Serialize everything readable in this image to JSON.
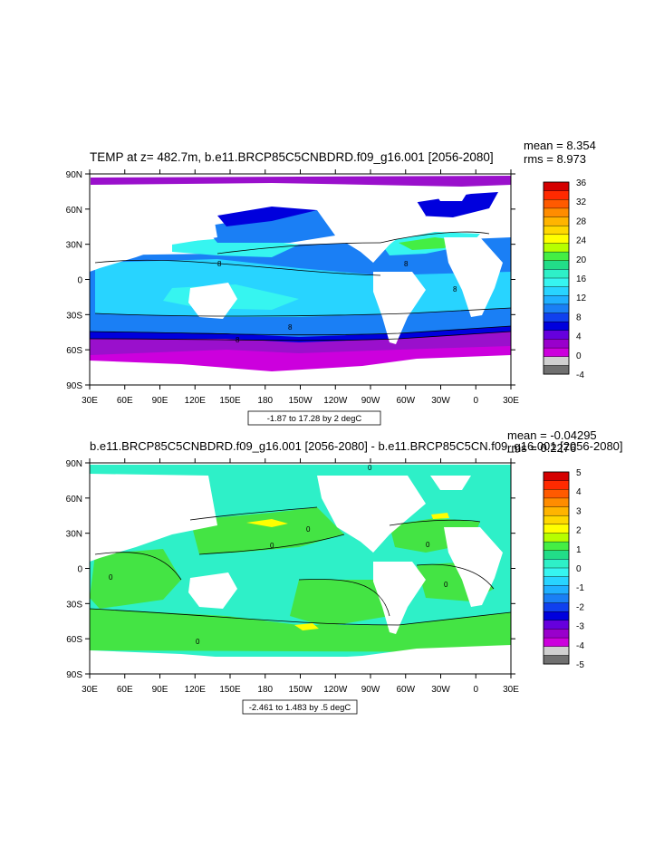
{
  "panel1": {
    "title": "TEMP at z= 482.7m, b.e11.BRCP85C5CNBDRD.f09_g16.001 [2056-2080]",
    "mean": "mean = 8.354",
    "rms": "rms = 8.973",
    "range_label": "-1.87 to 17.28 by 2 degC",
    "contour_labels": [
      "8",
      "8",
      "8",
      "8",
      "8"
    ],
    "colorbar": {
      "labels": [
        "36",
        "32",
        "28",
        "24",
        "20",
        "16",
        "12",
        "8",
        "4",
        "0",
        "-4"
      ],
      "colors": [
        "#d40000",
        "#ff2a00",
        "#ff5a00",
        "#ff8c00",
        "#ffb400",
        "#ffd800",
        "#ffff00",
        "#b6ff00",
        "#44ee44",
        "#22dd88",
        "#2ef0c8",
        "#36f5f0",
        "#28d4ff",
        "#20b0ff",
        "#1a7ff5",
        "#1040ee",
        "#0000dd",
        "#6600dd",
        "#9900cc",
        "#cc00dd",
        "#d0d0d0",
        "#707070"
      ]
    }
  },
  "panel2": {
    "title": "b.e11.BRCP85C5CNBDRD.f09_g16.001 [2056-2080] - b.e11.BRCP85C5CN.f09_g16.001 [2056-2080]",
    "mean": "mean = -0.04295",
    "rms": "rms = 0.2276",
    "range_label": "-2.461 to 1.483 by .5 degC",
    "contour_labels": [
      "0",
      "0",
      "0",
      "0",
      "0",
      "0",
      "0"
    ],
    "colorbar": {
      "labels": [
        "5",
        "4",
        "3",
        "2",
        "1",
        "0",
        "-1",
        "-2",
        "-3",
        "-4",
        "-5"
      ],
      "colors": [
        "#d40000",
        "#ff2a00",
        "#ff5a00",
        "#ff8c00",
        "#ffb400",
        "#ffd800",
        "#ffff00",
        "#b6ff00",
        "#44ee44",
        "#22dd88",
        "#2ef0c8",
        "#36f5f0",
        "#28d4ff",
        "#20b0ff",
        "#1a7ff5",
        "#1040ee",
        "#0000dd",
        "#6600dd",
        "#9900cc",
        "#cc00dd",
        "#d0d0d0",
        "#707070"
      ]
    }
  },
  "axes": {
    "lat_labels": [
      "90N",
      "60N",
      "30N",
      "0",
      "30S",
      "60S",
      "90S"
    ],
    "lon_labels": [
      "30E",
      "60E",
      "90E",
      "120E",
      "150E",
      "180",
      "150W",
      "120W",
      "90W",
      "60W",
      "30W",
      "0",
      "30E"
    ]
  },
  "colors": {
    "land": "#ffffff",
    "ice_purple": "#9a10cc",
    "magenta": "#cc00dd",
    "blue": "#1a7ff5",
    "dark_blue": "#0000dd",
    "light_blue": "#28d4ff",
    "cyan": "#36f5f0",
    "green": "#44ee44",
    "diff_cyan": "#2ef0c8",
    "diff_green": "#44e444"
  }
}
